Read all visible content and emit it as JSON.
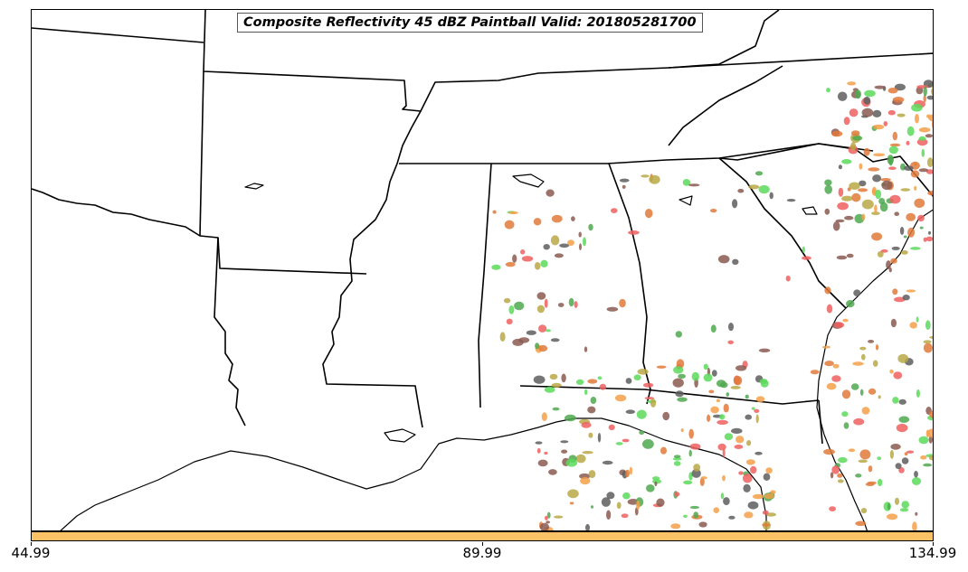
{
  "title": "Composite Reflectivity 45 dBZ Paintball Valid: 201805281700",
  "colorbar": {
    "color": "#fcc366",
    "ticks": [
      "44.99",
      "89.99",
      "134.99"
    ]
  },
  "echo_colors": [
    "#f06060",
    "#f5a04a",
    "#5cdb5c",
    "#8a5a50",
    "#5e5e5e",
    "#b8a845",
    "#e07a3a",
    "#4fa84f"
  ],
  "map_style": {
    "boundary_color": "#000000",
    "background": "#ffffff"
  }
}
